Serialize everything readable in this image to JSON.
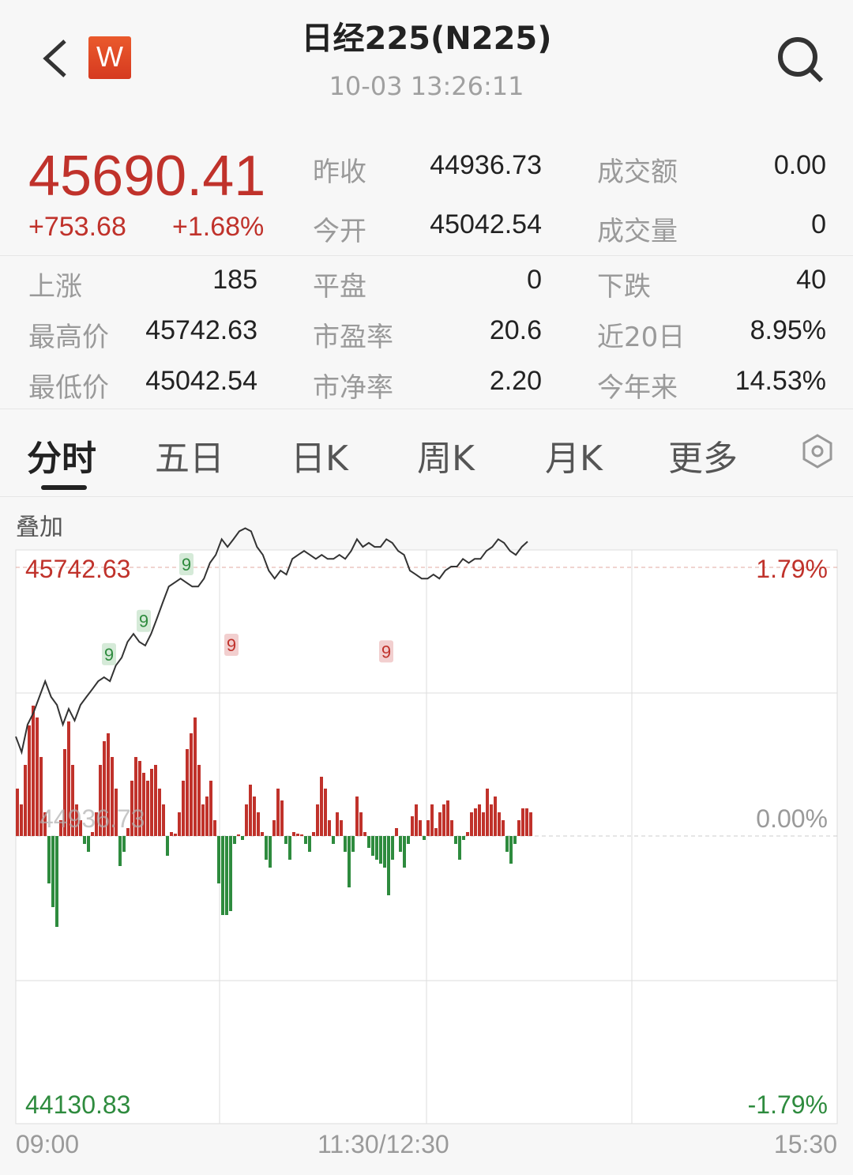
{
  "header": {
    "title": "日经225(N225)",
    "timestamp": "10-03 13:26:11",
    "logo_letter": "W",
    "back_icon": "chevron-left-icon",
    "search_icon": "search-icon"
  },
  "quote": {
    "price": "45690.41",
    "change": "+753.68",
    "change_pct": "+1.68%",
    "color": "#c0322b"
  },
  "stats": [
    {
      "label": "昨收",
      "value": "44936.73"
    },
    {
      "label": "成交额",
      "value": "0.00"
    },
    {
      "label": "今开",
      "value": "45042.54"
    },
    {
      "label": "成交量",
      "value": "0"
    },
    {
      "label": "上涨",
      "value": "185"
    },
    {
      "label": "平盘",
      "value": "0"
    },
    {
      "label": "下跌",
      "value": "40"
    },
    {
      "label": "最高价",
      "value": "45742.63"
    },
    {
      "label": "市盈率",
      "value": "20.6"
    },
    {
      "label": "近20日",
      "value": "8.95%"
    },
    {
      "label": "最低价",
      "value": "45042.54"
    },
    {
      "label": "市净率",
      "value": "2.20"
    },
    {
      "label": "今年来",
      "value": "14.53%"
    }
  ],
  "tabs": [
    {
      "label": "分时",
      "active": true
    },
    {
      "label": "五日"
    },
    {
      "label": "日K"
    },
    {
      "label": "周K"
    },
    {
      "label": "月K"
    },
    {
      "label": "更多"
    }
  ],
  "overlay_label": "叠加",
  "chart": {
    "high_label": "45742.63",
    "low_label": "44130.83",
    "base_label": "44936.73",
    "high_pct": "1.79%",
    "base_pct": "0.00%",
    "low_pct": "-1.79%",
    "x_labels": [
      "09:00",
      "11:30/12:30",
      "15:30"
    ],
    "up_color": "#c0322b",
    "down_color": "#2e8b3e",
    "ylim": [
      44130.83,
      45742.63
    ],
    "signals": [
      {
        "text": "9",
        "type": "green",
        "price": 45430
      },
      {
        "text": "9",
        "type": "green",
        "price": 45530
      },
      {
        "text": "9",
        "type": "green",
        "price": 45700
      },
      {
        "text": "9",
        "type": "red",
        "price": 45610
      },
      {
        "text": "9",
        "type": "red",
        "price": 45590
      }
    ],
    "price_line": [
      45235,
      45188,
      45271,
      45306,
      45354,
      45401,
      45354,
      45330,
      45271,
      45318,
      45283,
      45330,
      45354,
      45377,
      45401,
      45413,
      45401,
      45448,
      45472,
      45519,
      45543,
      45519,
      45508,
      45543,
      45590,
      45638,
      45685,
      45697,
      45709,
      45697,
      45685,
      45685,
      45709,
      45756,
      45780,
      45827,
      45804,
      45827,
      45851,
      45860,
      45851,
      45804,
      45780,
      45733,
      45709,
      45733,
      45721,
      45768,
      45780,
      45792,
      45780,
      45768,
      45780,
      45768,
      45768,
      45780,
      45768,
      45792,
      45827,
      45804,
      45816,
      45804,
      45804,
      45827,
      45816,
      45792,
      45780,
      45733,
      45721,
      45709,
      45709,
      45721,
      45709,
      45733,
      45745,
      45745,
      45768,
      45756,
      45768,
      45768,
      45792,
      45804,
      45827,
      45816,
      45792,
      45780,
      45804,
      45820
    ],
    "volume": [
      60,
      40,
      90,
      140,
      165,
      150,
      100,
      30,
      -60,
      -90,
      -115,
      20,
      110,
      145,
      90,
      40,
      20,
      -10,
      -20,
      5,
      30,
      90,
      120,
      130,
      100,
      60,
      -38,
      -20,
      10,
      70,
      100,
      95,
      80,
      70,
      85,
      90,
      60,
      40,
      -25,
      5,
      3,
      30,
      70,
      110,
      130,
      150,
      90,
      40,
      50,
      70,
      20,
      -60,
      -100,
      -100,
      -95,
      -10,
      2,
      -5,
      40,
      65,
      50,
      30,
      5,
      -30,
      -40,
      20,
      60,
      45,
      -10,
      -30,
      5,
      3,
      2,
      -10,
      -20,
      5,
      40,
      75,
      60,
      20,
      -10,
      30,
      20,
      -20,
      -65,
      -20,
      50,
      30,
      5,
      -15,
      -25,
      -30,
      -35,
      -40,
      -75,
      -30,
      10,
      -20,
      -40,
      -10,
      25,
      40,
      20,
      -5,
      20,
      40,
      10,
      30,
      40,
      45,
      20,
      -10,
      -30,
      -5,
      5,
      30,
      35,
      40,
      30,
      60,
      40,
      50,
      30,
      20,
      -20,
      -35,
      -10,
      20,
      35,
      35,
      30
    ]
  },
  "settings_icon": "hexagon-settings-icon"
}
